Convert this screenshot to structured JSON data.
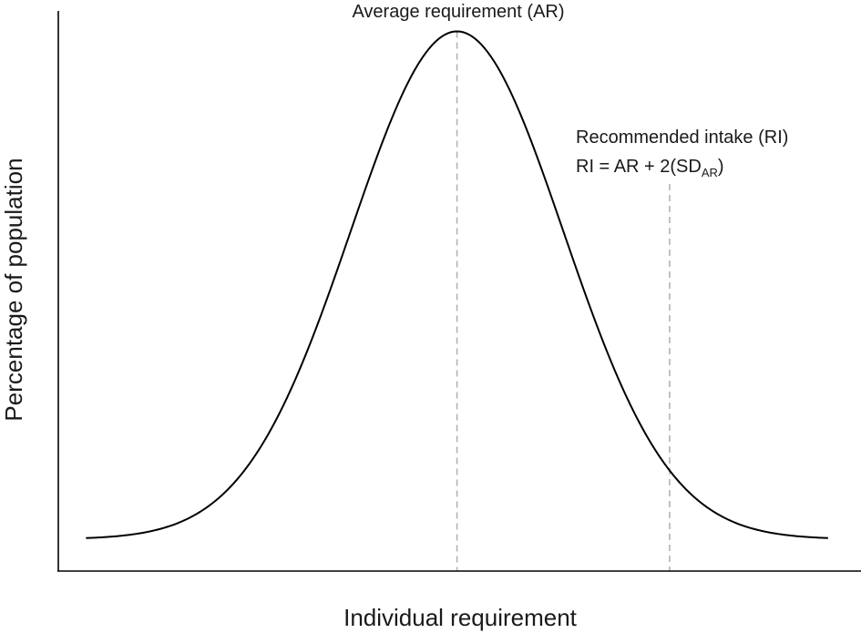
{
  "chart_data": {
    "type": "line",
    "title": "",
    "xlabel": "Individual requirement",
    "ylabel": "Percentage of population",
    "grid": false,
    "legend": "none",
    "series": [
      {
        "distribution": "normal",
        "mean": 0,
        "sd": 1,
        "x_min": -3.49,
        "x_max": 3.49
      }
    ],
    "xlim": [
      -3.75,
      3.8
    ],
    "ylim": [
      -0.025,
      0.415
    ],
    "annotations": [
      {
        "x": 0,
        "text": "Average requirement (AR)"
      },
      {
        "x": 2,
        "lines": [
          "Recommended intake (RI)",
          "RI = AR + 2(SD",
          "AR",
          ")"
        ]
      }
    ],
    "colors": {
      "curve": "#000000",
      "marker_line": "#b3b3b3",
      "axis": "#000000",
      "text": "#1a1a1a"
    }
  }
}
